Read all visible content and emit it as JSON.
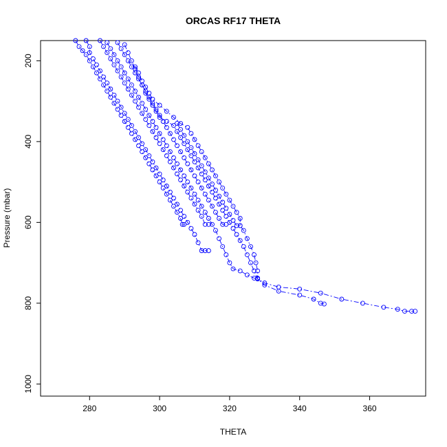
{
  "chart_data": {
    "type": "line",
    "title": "ORCAS RF17 THETA",
    "xlabel": "THETA",
    "ylabel": "Pressure (mbar)",
    "xlim": [
      266,
      376
    ],
    "ylim": [
      1030,
      150
    ],
    "y_reversed": true,
    "grid": false,
    "x_ticks": [
      280,
      300,
      320,
      340,
      360
    ],
    "y_ticks": [
      200,
      400,
      600,
      800,
      1000
    ],
    "series_color": "#0000ff",
    "marker": "open-circle",
    "line_style": "dash-dot",
    "series": [
      {
        "points": [
          [
            276,
            150
          ],
          [
            277,
            165
          ],
          [
            278,
            175
          ],
          [
            279,
            185
          ],
          [
            280,
            200
          ],
          [
            281,
            215
          ],
          [
            282,
            230
          ],
          [
            283,
            245
          ],
          [
            284,
            260
          ],
          [
            285,
            275
          ],
          [
            286,
            290
          ],
          [
            287,
            305
          ],
          [
            288,
            320
          ],
          [
            289,
            335
          ],
          [
            290,
            350
          ],
          [
            291,
            365
          ],
          [
            292,
            380
          ],
          [
            293,
            395
          ],
          [
            294,
            410
          ],
          [
            295,
            425
          ],
          [
            296,
            440
          ],
          [
            297,
            455
          ],
          [
            298,
            470
          ],
          [
            299,
            485
          ],
          [
            300,
            500
          ],
          [
            301,
            515
          ],
          [
            302,
            530
          ],
          [
            303,
            545
          ],
          [
            304,
            560
          ],
          [
            305,
            575
          ],
          [
            306,
            590
          ],
          [
            306.5,
            605
          ],
          [
            307,
            605
          ]
        ]
      },
      {
        "points": [
          [
            279,
            150
          ],
          [
            280,
            165
          ],
          [
            280,
            180
          ],
          [
            281,
            195
          ],
          [
            282,
            210
          ],
          [
            283,
            225
          ],
          [
            284,
            240
          ],
          [
            285,
            255
          ],
          [
            286,
            270
          ],
          [
            287,
            285
          ],
          [
            288,
            300
          ],
          [
            289,
            315
          ],
          [
            290,
            330
          ],
          [
            291,
            345
          ],
          [
            292,
            360
          ],
          [
            293,
            375
          ],
          [
            294,
            390
          ],
          [
            295,
            405
          ],
          [
            296,
            420
          ],
          [
            297,
            435
          ],
          [
            298,
            450
          ],
          [
            299,
            465
          ],
          [
            300,
            480
          ],
          [
            301,
            495
          ],
          [
            302,
            510
          ],
          [
            303,
            525
          ],
          [
            304,
            540
          ],
          [
            305,
            555
          ],
          [
            306,
            570
          ],
          [
            307,
            585
          ],
          [
            308,
            600
          ],
          [
            309,
            615
          ],
          [
            310,
            630
          ],
          [
            311,
            650
          ],
          [
            312,
            670
          ],
          [
            313,
            670
          ],
          [
            314,
            670
          ]
        ]
      },
      {
        "points": [
          [
            283,
            150
          ],
          [
            284,
            165
          ],
          [
            285,
            180
          ],
          [
            286,
            195
          ],
          [
            287,
            210
          ],
          [
            288,
            225
          ],
          [
            289,
            240
          ],
          [
            290,
            255
          ],
          [
            291,
            270
          ],
          [
            292,
            285
          ],
          [
            293,
            300
          ],
          [
            294,
            315
          ],
          [
            295,
            330
          ],
          [
            296,
            345
          ],
          [
            297,
            360
          ],
          [
            298,
            375
          ],
          [
            299,
            390
          ],
          [
            300,
            405
          ],
          [
            301,
            420
          ],
          [
            302,
            435
          ],
          [
            303,
            450
          ],
          [
            304,
            465
          ],
          [
            305,
            480
          ],
          [
            306,
            495
          ],
          [
            307,
            510
          ],
          [
            308,
            525
          ],
          [
            309,
            540
          ],
          [
            310,
            555
          ],
          [
            311,
            570
          ],
          [
            312,
            585
          ],
          [
            313,
            605
          ],
          [
            314,
            605
          ]
        ]
      },
      {
        "points": [
          [
            285,
            155
          ],
          [
            286,
            170
          ],
          [
            287,
            185
          ],
          [
            288,
            200
          ],
          [
            289,
            215
          ],
          [
            290,
            230
          ],
          [
            291,
            245
          ],
          [
            292,
            260
          ],
          [
            293,
            275
          ],
          [
            294,
            290
          ],
          [
            295,
            305
          ],
          [
            296,
            320
          ],
          [
            297,
            335
          ],
          [
            298,
            350
          ],
          [
            299,
            365
          ],
          [
            300,
            380
          ],
          [
            301,
            395
          ],
          [
            302,
            410
          ],
          [
            303,
            425
          ],
          [
            304,
            440
          ],
          [
            305,
            455
          ],
          [
            306,
            470
          ],
          [
            307,
            485
          ],
          [
            308,
            500
          ],
          [
            309,
            515
          ],
          [
            310,
            530
          ],
          [
            311,
            545
          ],
          [
            312,
            560
          ],
          [
            313,
            575
          ],
          [
            314,
            590
          ],
          [
            315,
            605
          ],
          [
            316,
            620
          ],
          [
            317,
            640
          ],
          [
            318,
            660
          ],
          [
            319,
            680
          ],
          [
            320,
            700
          ],
          [
            321,
            715
          ],
          [
            323,
            720
          ],
          [
            325,
            730
          ],
          [
            327,
            738
          ],
          [
            328,
            738
          ]
        ]
      },
      {
        "points": [
          [
            288,
            155
          ],
          [
            289,
            170
          ],
          [
            290,
            185
          ],
          [
            291,
            200
          ],
          [
            292,
            215
          ],
          [
            293,
            230
          ],
          [
            294,
            245
          ],
          [
            295,
            260
          ],
          [
            296,
            275
          ],
          [
            297,
            290
          ],
          [
            298,
            305
          ],
          [
            299,
            320
          ],
          [
            300,
            335
          ],
          [
            301,
            350
          ],
          [
            302,
            365
          ],
          [
            303,
            380
          ],
          [
            304,
            395
          ],
          [
            305,
            410
          ],
          [
            306,
            425
          ],
          [
            307,
            440
          ],
          [
            308,
            455
          ],
          [
            309,
            470
          ],
          [
            310,
            485
          ],
          [
            311,
            500
          ],
          [
            312,
            515
          ],
          [
            313,
            530
          ],
          [
            314,
            545
          ],
          [
            315,
            560
          ],
          [
            316,
            575
          ],
          [
            317,
            590
          ],
          [
            318,
            605
          ],
          [
            319,
            605
          ]
        ]
      },
      {
        "points": [
          [
            290,
            160
          ],
          [
            291,
            180
          ],
          [
            292,
            200
          ],
          [
            293,
            220
          ],
          [
            294,
            240
          ],
          [
            295,
            260
          ],
          [
            296,
            280
          ],
          [
            297,
            295
          ],
          [
            298,
            310
          ],
          [
            299,
            325
          ],
          [
            300,
            340
          ],
          [
            302,
            350
          ],
          [
            304,
            360
          ],
          [
            305,
            375
          ],
          [
            306,
            390
          ],
          [
            307,
            405
          ],
          [
            308,
            420
          ],
          [
            309,
            435
          ],
          [
            310,
            450
          ],
          [
            311,
            465
          ],
          [
            312,
            480
          ],
          [
            313,
            495
          ],
          [
            314,
            510
          ],
          [
            315,
            525
          ],
          [
            316,
            540
          ],
          [
            317,
            555
          ],
          [
            318,
            570
          ],
          [
            319,
            585
          ],
          [
            320,
            600
          ],
          [
            321,
            615
          ],
          [
            322,
            630
          ],
          [
            323,
            645
          ],
          [
            324,
            660
          ],
          [
            325,
            680
          ],
          [
            326,
            700
          ],
          [
            327,
            720
          ],
          [
            328,
            740
          ],
          [
            330,
            755
          ],
          [
            334,
            770
          ],
          [
            340,
            780
          ],
          [
            344,
            790
          ],
          [
            346,
            800
          ],
          [
            347,
            802
          ]
        ]
      },
      {
        "points": [
          [
            293,
            215
          ],
          [
            294,
            230
          ],
          [
            295,
            250
          ],
          [
            296,
            265
          ],
          [
            297,
            280
          ],
          [
            298,
            295
          ],
          [
            300,
            310
          ],
          [
            302,
            325
          ],
          [
            304,
            340
          ],
          [
            306,
            355
          ],
          [
            308,
            365
          ],
          [
            309,
            380
          ],
          [
            310,
            395
          ],
          [
            311,
            410
          ],
          [
            312,
            425
          ],
          [
            313,
            440
          ],
          [
            314,
            455
          ],
          [
            315,
            470
          ],
          [
            316,
            485
          ],
          [
            317,
            500
          ],
          [
            318,
            515
          ],
          [
            319,
            530
          ],
          [
            320,
            545
          ],
          [
            321,
            560
          ],
          [
            322,
            575
          ],
          [
            323,
            590
          ],
          [
            323,
            608
          ],
          [
            324,
            620
          ],
          [
            325,
            640
          ],
          [
            326,
            660
          ],
          [
            327,
            680
          ],
          [
            327.5,
            700
          ],
          [
            328,
            720
          ],
          [
            328,
            740
          ],
          [
            330,
            750
          ],
          [
            334,
            760
          ],
          [
            340,
            765
          ],
          [
            346,
            775
          ],
          [
            352,
            790
          ],
          [
            358,
            800
          ],
          [
            364,
            810
          ],
          [
            368,
            815
          ],
          [
            370,
            820
          ],
          [
            372,
            820
          ],
          [
            373,
            820
          ]
        ]
      },
      {
        "points": [
          [
            305,
            355
          ],
          [
            306,
            370
          ],
          [
            307,
            385
          ],
          [
            308,
            400
          ],
          [
            309,
            415
          ],
          [
            310,
            430
          ],
          [
            311,
            445
          ],
          [
            312,
            460
          ],
          [
            313,
            475
          ],
          [
            314,
            490
          ],
          [
            315,
            505
          ],
          [
            316,
            520
          ],
          [
            317,
            535
          ],
          [
            318,
            550
          ],
          [
            319,
            565
          ],
          [
            320,
            580
          ],
          [
            321,
            595
          ],
          [
            322,
            608
          ],
          [
            323,
            608
          ]
        ]
      }
    ]
  }
}
